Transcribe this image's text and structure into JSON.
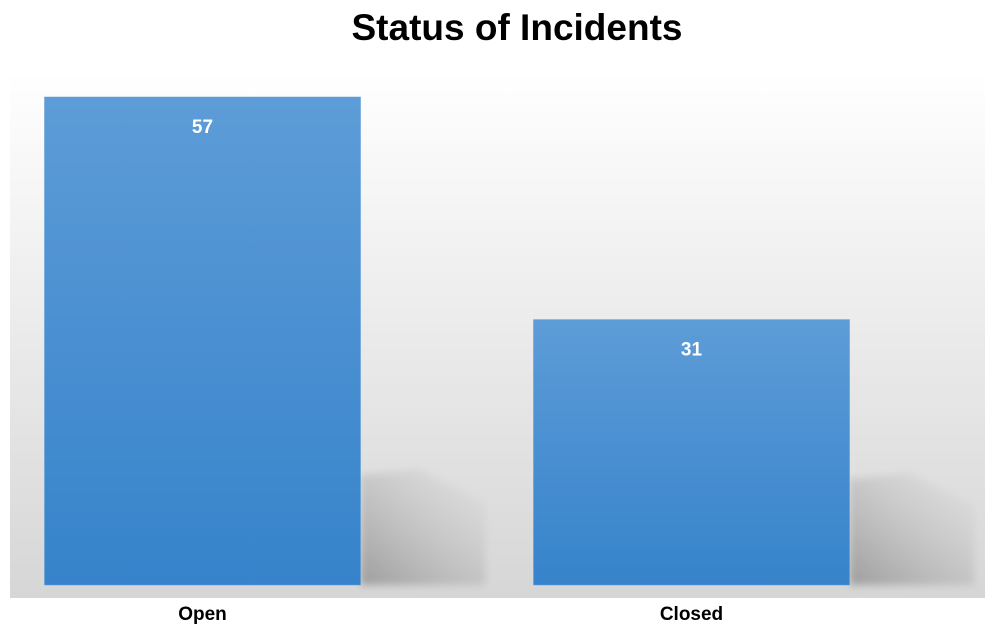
{
  "chart_data": {
    "type": "bar",
    "title": "Status of Incidents",
    "categories": [
      "Open",
      "Closed"
    ],
    "values": [
      57,
      31
    ],
    "color": "#5b9bd5"
  }
}
